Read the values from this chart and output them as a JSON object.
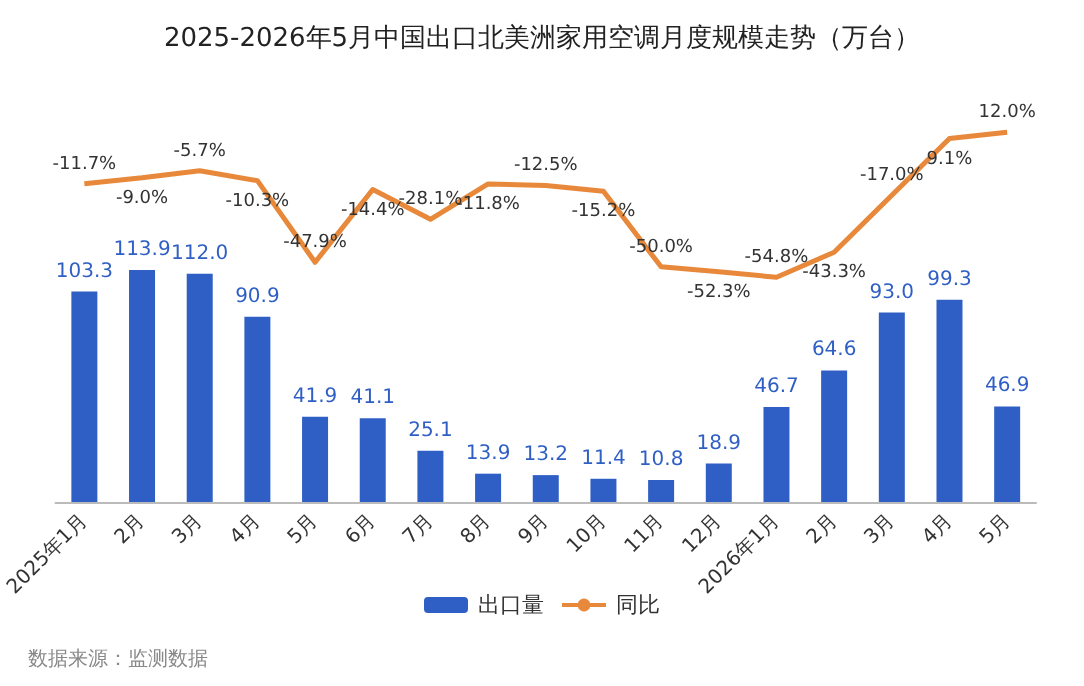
{
  "chart_data": {
    "type": "bar",
    "title": "2025-2026年5月中国出口北美洲家用空调月度规模走势（万台）",
    "categories": [
      "2025年1月",
      "2月",
      "3月",
      "4月",
      "5月",
      "6月",
      "7月",
      "8月",
      "9月",
      "10月",
      "11月",
      "12月",
      "2026年1月",
      "2月",
      "3月",
      "4月",
      "5月"
    ],
    "series": [
      {
        "name": "出口量",
        "color": "#2f5fc4",
        "values": [
          103.3,
          113.9,
          112.0,
          90.9,
          41.9,
          41.1,
          25.1,
          13.9,
          13.2,
          11.4,
          10.8,
          18.9,
          46.7,
          64.6,
          93.0,
          99.3,
          46.9
        ],
        "value_labels": [
          "103.3",
          "113.9",
          "112.0",
          "90.9",
          "41.9",
          "41.1",
          "25.1",
          "13.9",
          "13.2",
          "11.4",
          "10.8",
          "18.9",
          "46.7",
          "64.6",
          "93.0",
          "99.3",
          "46.9"
        ]
      },
      {
        "name": "同比",
        "type": "line",
        "axis": "y2",
        "color": "#e8883a",
        "values": [
          -11.7,
          -9.0,
          -5.7,
          -10.3,
          -47.9,
          -14.4,
          -28.1,
          -11.8,
          -12.5,
          -15.2,
          -50.0,
          -52.3,
          -54.8,
          -43.3,
          -17.0,
          9.1,
          12.0
        ],
        "value_labels": [
          "-11.7%",
          "-9.0%",
          "-5.7%",
          "-10.3%",
          "-47.9%",
          "-14.4%",
          "-28.1%",
          "-11.8%",
          "-12.5%",
          "-15.2%",
          "-50.0%",
          "-52.3%",
          "-54.8%",
          "-43.3%",
          "-17.0%",
          "9.1%",
          "12.0%"
        ]
      }
    ],
    "legend": "bottom",
    "grid": false,
    "marker": "none",
    "line_style": "solid",
    "annotations": [
      "数据来源：监测数据"
    ]
  }
}
